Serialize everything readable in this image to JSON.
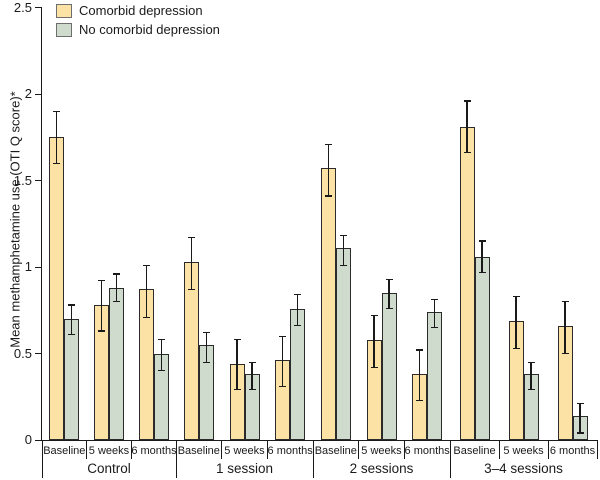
{
  "figure": {
    "background": "#ffffff",
    "axis_color": "#1a1a1a",
    "bar_border_color": "#2b2b2b",
    "error_bar_color": "#1a1a1a"
  },
  "chart_data": {
    "type": "bar",
    "title": "",
    "xlabel": "",
    "ylabel": "Mean methamphetamine use (OTI Q score)*",
    "ylim": [
      0,
      2.5
    ],
    "yticks": [
      0,
      0.5,
      1,
      1.5,
      2,
      2.5
    ],
    "grid": false,
    "legend_position": "top-left",
    "groups": [
      "Control",
      "1 session",
      "2 sessions",
      "3–4 sessions"
    ],
    "timepoints": [
      "Baseline",
      "5 weeks",
      "6 months"
    ],
    "series": [
      {
        "name": "Comorbid depression",
        "color": "#FCE2A4",
        "values": [
          [
            1.75,
            0.78,
            0.87
          ],
          [
            1.03,
            0.44,
            0.46
          ],
          [
            1.57,
            0.58,
            0.38
          ],
          [
            1.81,
            0.69,
            0.66
          ]
        ],
        "err_low": [
          [
            1.6,
            0.63,
            0.71
          ],
          [
            0.87,
            0.29,
            0.31
          ],
          [
            1.41,
            0.42,
            0.23
          ],
          [
            1.66,
            0.53,
            0.5
          ]
        ],
        "err_high": [
          [
            1.9,
            0.92,
            1.01
          ],
          [
            1.17,
            0.58,
            0.6
          ],
          [
            1.71,
            0.72,
            0.52
          ],
          [
            1.96,
            0.83,
            0.8
          ]
        ]
      },
      {
        "name": "No comorbid depression",
        "color": "#CFDBCD",
        "values": [
          [
            0.7,
            0.88,
            0.5
          ],
          [
            0.55,
            0.38,
            0.76
          ],
          [
            1.11,
            0.85,
            0.74
          ],
          [
            1.06,
            0.38,
            0.14
          ]
        ],
        "err_low": [
          [
            0.61,
            0.8,
            0.4
          ],
          [
            0.45,
            0.29,
            0.66
          ],
          [
            1.01,
            0.76,
            0.65
          ],
          [
            0.97,
            0.29,
            0.04
          ]
        ],
        "err_high": [
          [
            0.78,
            0.96,
            0.58
          ],
          [
            0.62,
            0.45,
            0.84
          ],
          [
            1.18,
            0.93,
            0.81
          ],
          [
            1.15,
            0.45,
            0.21
          ]
        ]
      }
    ]
  }
}
